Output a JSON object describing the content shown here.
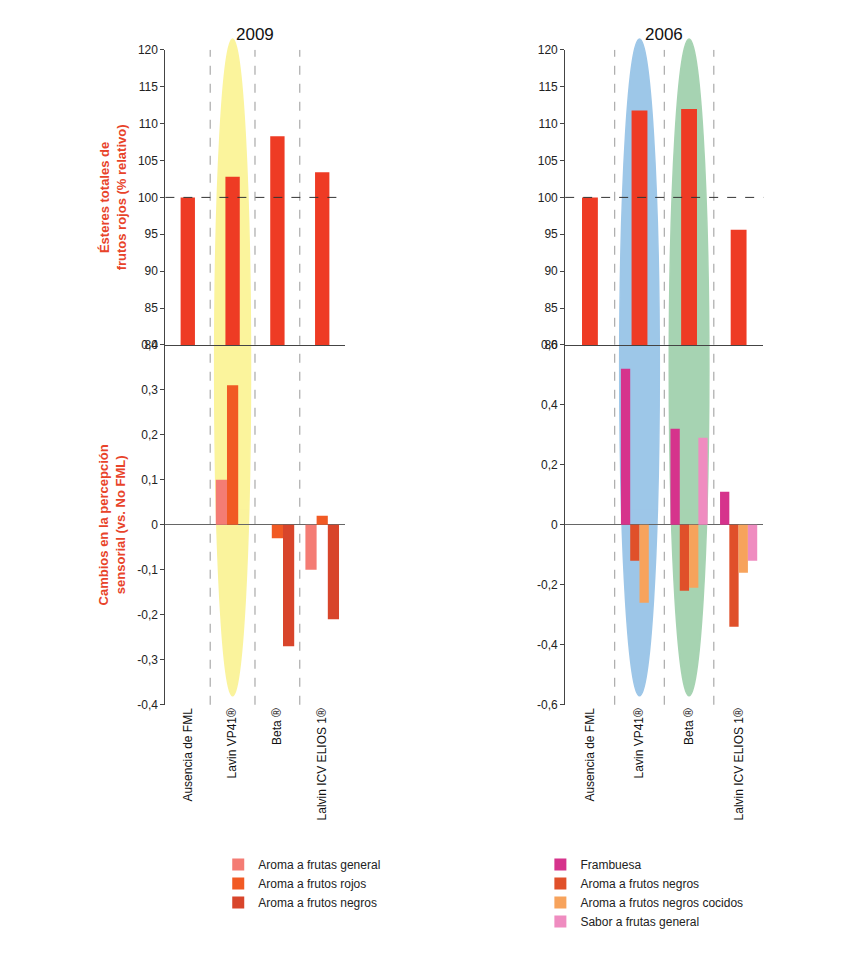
{
  "chart_data": [
    {
      "type": "bar",
      "title": "2009",
      "categories": [
        "Ausencia de FML",
        "Lavin VP41®",
        "Beta ®",
        "Lalvin ICV ELIOS 1®"
      ],
      "highlights": [
        {
          "category": "Lavin VP41®",
          "color": "#f7e93b"
        }
      ],
      "top": {
        "ylabel": "Ésteres totales de frutos rojos (% relativo)",
        "ylim": [
          80,
          120
        ],
        "yticks": [
          80,
          85,
          90,
          95,
          100,
          105,
          110,
          115,
          120
        ],
        "values": [
          100,
          102.8,
          108.3,
          103.4
        ],
        "color": "#ee3b24",
        "reference_line": 100
      },
      "bottom": {
        "ylabel": "Cambios en la percepción sensorial (vs. No FML)",
        "ylim": [
          -0.4,
          0.4
        ],
        "yticks": [
          {
            "value": -0.4,
            "label": "-0,4"
          },
          {
            "value": -0.3,
            "label": "-0,3"
          },
          {
            "value": -0.2,
            "label": "-0,2"
          },
          {
            "value": -0.1,
            "label": "-0,1"
          },
          0,
          {
            "value": 0.1,
            "label": "0,1"
          },
          {
            "value": 0.2,
            "label": "0,2"
          },
          {
            "value": 0.3,
            "label": "0,3"
          },
          {
            "value": 0.4,
            "label": "0,4"
          }
        ],
        "legend": "bottom",
        "series": [
          {
            "name": "Aroma a frutas general",
            "color": "#f47c74",
            "values": [
              null,
              0.1,
              null,
              -0.1
            ]
          },
          {
            "name": "Aroma a frutos rojos",
            "color": "#f15a24",
            "values": [
              null,
              0.31,
              -0.03,
              0.02
            ]
          },
          {
            "name": "Aroma a frutos negros",
            "color": "#d8452b",
            "values": [
              null,
              null,
              -0.27,
              -0.21
            ]
          }
        ]
      }
    },
    {
      "type": "bar",
      "title": "2006",
      "categories": [
        "Ausencia de FML",
        "Lavin VP41®",
        "Beta ®",
        "Lalvin ICV ELIOS 1®"
      ],
      "highlights": [
        {
          "category": "Lavin VP41®",
          "color": "#3d8fd2"
        },
        {
          "category": "Beta ®",
          "color": "#4fa866"
        }
      ],
      "top": {
        "ylim": [
          80,
          120
        ],
        "yticks": [
          80,
          85,
          90,
          95,
          100,
          105,
          110,
          115,
          120
        ],
        "values": [
          100,
          111.8,
          112,
          95.6
        ],
        "color": "#ee3b24",
        "reference_line": 100
      },
      "bottom": {
        "ylim": [
          -0.6,
          0.6
        ],
        "yticks": [
          {
            "value": -0.6,
            "label": "-0,6"
          },
          {
            "value": -0.4,
            "label": "-0,4"
          },
          {
            "value": -0.2,
            "label": "-0,2"
          },
          0,
          {
            "value": 0.2,
            "label": "0,2"
          },
          {
            "value": 0.4,
            "label": "0,4"
          },
          {
            "value": 0.6,
            "label": "0,6"
          }
        ],
        "legend": "bottom",
        "series": [
          {
            "name": "Frambuesa",
            "color": "#d6338c",
            "values": [
              null,
              0.52,
              0.32,
              0.11
            ]
          },
          {
            "name": "Aroma a frutos negros",
            "color": "#e0502a",
            "values": [
              null,
              -0.12,
              -0.22,
              -0.34
            ]
          },
          {
            "name": "Aroma a frutos negros cocidos",
            "color": "#f7a35c",
            "values": [
              null,
              -0.26,
              -0.21,
              -0.16
            ]
          },
          {
            "name": "Sabor a frutas general",
            "color": "#ef8cc0",
            "values": [
              null,
              null,
              0.29,
              -0.12
            ]
          }
        ]
      }
    }
  ]
}
